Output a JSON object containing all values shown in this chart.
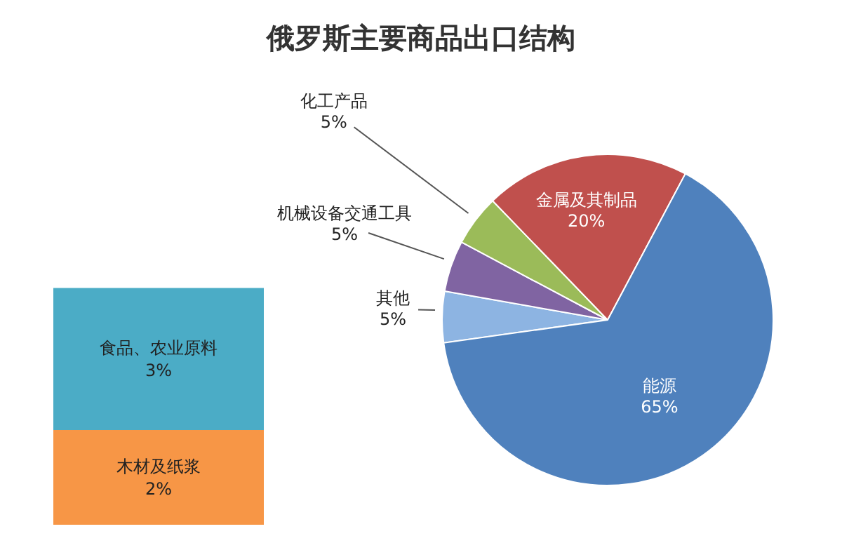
{
  "chart_data": [
    {
      "type": "pie",
      "title": "俄罗斯主要商品出口结构",
      "categories": [
        "其他",
        "机械设备交通工具",
        "化工产品",
        "金属及其制品",
        "能源"
      ],
      "values": [
        5,
        5,
        5,
        20,
        65
      ],
      "colors": [
        "#8db4e2",
        "#8064a2",
        "#9bbb59",
        "#c0504d",
        "#4f81bd"
      ],
      "value_labels": [
        "5%",
        "5%",
        "5%",
        "20%",
        "65%"
      ]
    },
    {
      "type": "bar",
      "stacked": true,
      "categories": [
        null
      ],
      "series": [
        {
          "name": "木材及纸浆",
          "color": "#f79646",
          "values": [
            2
          ],
          "value_labels": [
            "2%"
          ]
        },
        {
          "name": "食品、农业原料",
          "color": "#4bacc6",
          "values": [
            3
          ],
          "value_labels": [
            "3%"
          ]
        }
      ]
    }
  ]
}
